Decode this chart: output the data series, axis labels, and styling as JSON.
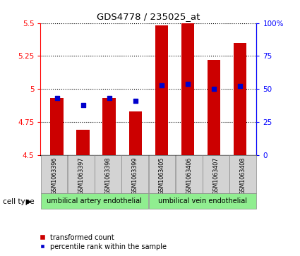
{
  "title": "GDS4778 / 235025_at",
  "samples": [
    "GSM1063396",
    "GSM1063397",
    "GSM1063398",
    "GSM1063399",
    "GSM1063405",
    "GSM1063406",
    "GSM1063407",
    "GSM1063408"
  ],
  "red_values": [
    4.93,
    4.69,
    4.93,
    4.83,
    5.48,
    5.5,
    5.22,
    5.35
  ],
  "blue_values": [
    4.93,
    4.88,
    4.93,
    4.91,
    5.03,
    5.04,
    5.0,
    5.02
  ],
  "ylim_left": [
    4.5,
    5.5
  ],
  "ylim_right": [
    0,
    100
  ],
  "yticks_left": [
    4.5,
    4.75,
    5.0,
    5.25,
    5.5
  ],
  "yticks_right": [
    0,
    25,
    50,
    75,
    100
  ],
  "ytick_labels_left": [
    "4.5",
    "4.75",
    "5",
    "5.25",
    "5.5"
  ],
  "ytick_labels_right": [
    "0",
    "25",
    "50",
    "75",
    "100%"
  ],
  "cell_types": [
    {
      "label": "umbilical artery endothelial",
      "color": "#90EE90",
      "start": 0,
      "end": 4
    },
    {
      "label": "umbilical vein endothelial",
      "color": "#90EE90",
      "start": 4,
      "end": 8
    }
  ],
  "bar_color": "#CC0000",
  "dot_color": "#0000CC",
  "bar_width": 0.5,
  "base_value": 4.5,
  "legend_red": "transformed count",
  "legend_blue": "percentile rank within the sample",
  "cell_type_label": "cell type"
}
